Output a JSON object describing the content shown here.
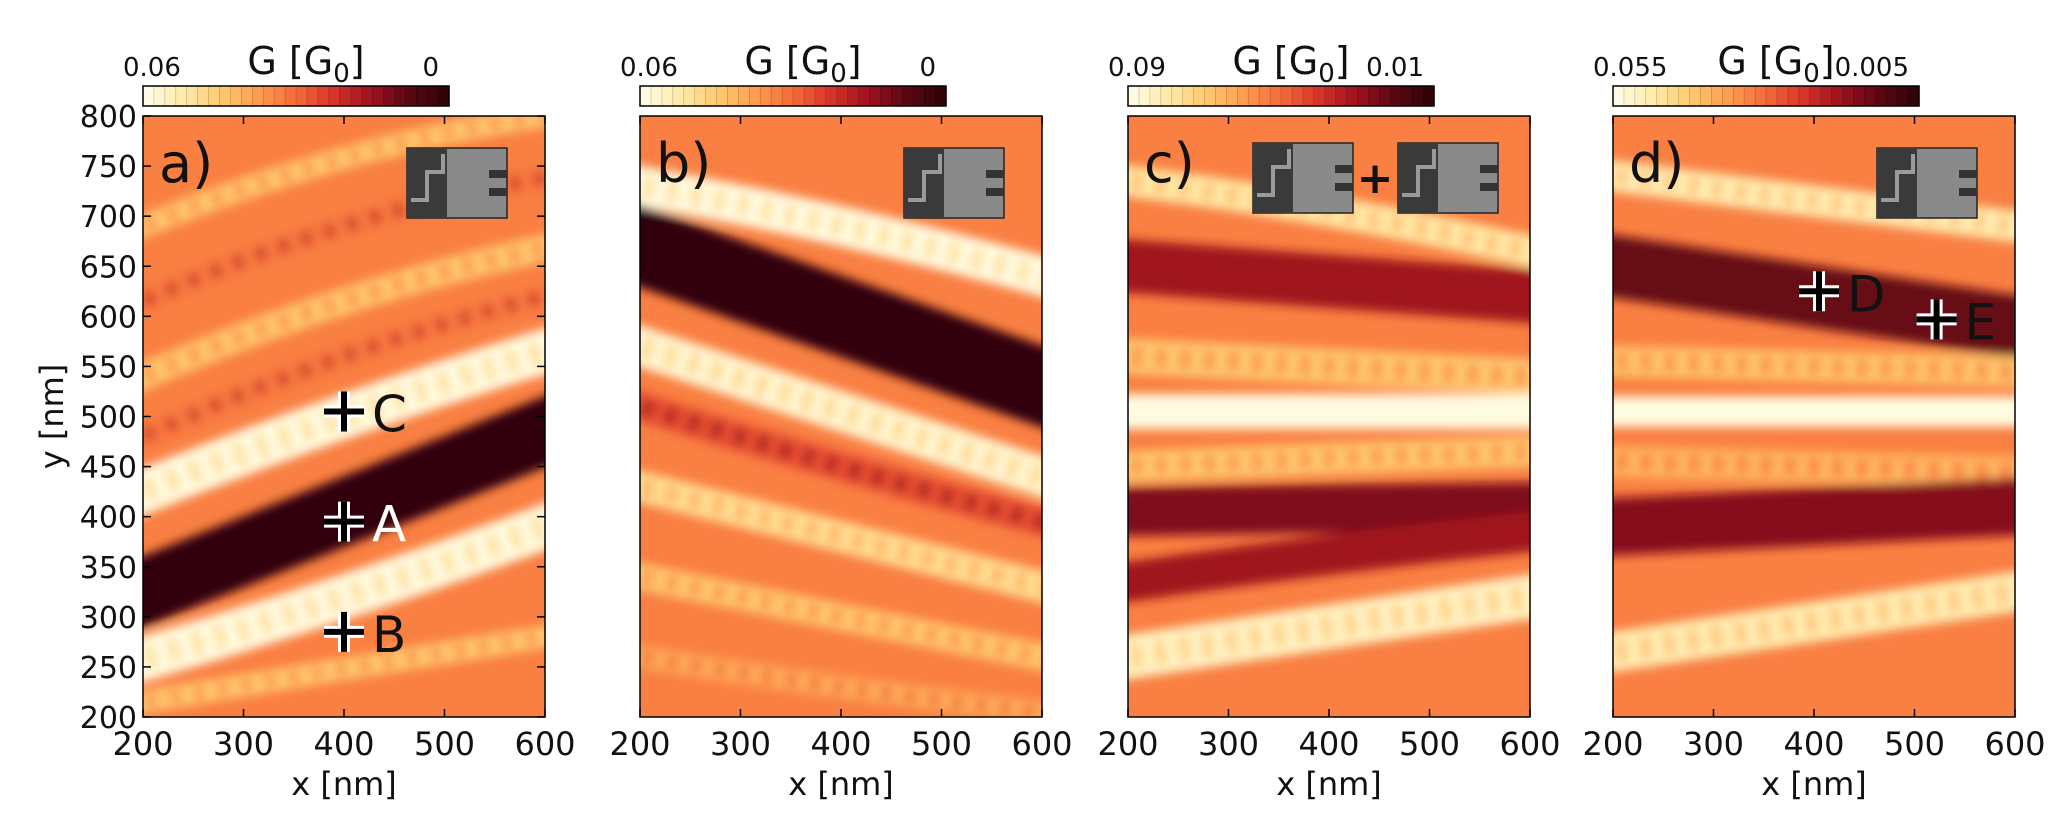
{
  "figure": {
    "colormap": [
      "#fffbe0",
      "#ffe9a6",
      "#ffc86e",
      "#ff9c4e",
      "#f56b3a",
      "#d8342a",
      "#a0121f",
      "#5e0814",
      "#320408"
    ],
    "panel_frame_color": "#000000",
    "marker_color": "#000000"
  },
  "chart_data": [
    {
      "type": "heatmap",
      "panel_label": "a)",
      "colorbar": {
        "label": "G [G",
        "label_sub": "0",
        "label_end": "]",
        "min_label": "0.06",
        "max_label": "0",
        "range": [
          0.06,
          0
        ]
      },
      "xlabel": "x [nm]",
      "xlim": [
        200,
        600
      ],
      "xticks": [
        "200",
        "300",
        "400",
        "500",
        "600"
      ],
      "ylabel": "y [nm]",
      "ylim": [
        200,
        800
      ],
      "yticks": [
        "200",
        "250",
        "300",
        "350",
        "400",
        "450",
        "500",
        "550",
        "600",
        "650",
        "700",
        "750",
        "800"
      ],
      "show_yaxis": true,
      "inset_icons": 1,
      "markers": [
        {
          "label": "C",
          "x": 400,
          "y": 505
        },
        {
          "label": "A",
          "x": 400,
          "y": 395,
          "white": true
        },
        {
          "label": "B",
          "x": 400,
          "y": 285
        }
      ],
      "bands": [
        {
          "x": [
            200,
            400,
            600
          ],
          "y": [
            215,
            248,
            280
          ],
          "value": 0.045,
          "width": 10,
          "ripple": true
        },
        {
          "x": [
            200,
            400,
            600
          ],
          "y": [
            258,
            320,
            390
          ],
          "value": 0.06,
          "width": 20,
          "ripple": true
        },
        {
          "x": [
            200,
            400,
            600
          ],
          "y": [
            325,
            405,
            485
          ],
          "value": 0.0,
          "width": 30,
          "ripple": true
        },
        {
          "x": [
            200,
            400,
            600
          ],
          "y": [
            425,
            500,
            565
          ],
          "value": 0.06,
          "width": 20,
          "ripple": true
        },
        {
          "x": [
            200,
            400,
            600
          ],
          "y": [
            480,
            560,
            620
          ],
          "value": 0.032,
          "width": 11,
          "ripple": true
        },
        {
          "x": [
            200,
            400,
            600
          ],
          "y": [
            540,
            615,
            668
          ],
          "value": 0.045,
          "width": 12,
          "ripple": true
        },
        {
          "x": [
            200,
            400,
            600
          ],
          "y": [
            615,
            690,
            738
          ],
          "value": 0.032,
          "width": 11,
          "ripple": true
        },
        {
          "x": [
            200,
            400,
            600
          ],
          "y": [
            690,
            758,
            800
          ],
          "value": 0.045,
          "width": 10,
          "ripple": true
        }
      ]
    },
    {
      "type": "heatmap",
      "panel_label": "b)",
      "colorbar": {
        "label": "G [G",
        "label_sub": "0",
        "label_end": "]",
        "min_label": "0.06",
        "max_label": "0",
        "range": [
          0.06,
          0
        ]
      },
      "xlabel": "x [nm]",
      "xlim": [
        200,
        600
      ],
      "xticks": [
        "200",
        "300",
        "400",
        "500",
        "600"
      ],
      "ylim": [
        200,
        800
      ],
      "show_yaxis": false,
      "inset_icons": 1,
      "markers": [],
      "bands": [
        {
          "x": [
            200,
            400,
            600
          ],
          "y": [
            730,
            690,
            640
          ],
          "value": 0.06,
          "width": 18,
          "ripple": true
        },
        {
          "x": [
            200,
            400,
            600
          ],
          "y": [
            670,
            600,
            530
          ],
          "value": 0.0,
          "width": 35,
          "ripple": true
        },
        {
          "x": [
            200,
            400,
            600
          ],
          "y": [
            570,
            505,
            440
          ],
          "value": 0.058,
          "width": 18,
          "ripple": true
        },
        {
          "x": [
            200,
            400,
            600
          ],
          "y": [
            510,
            450,
            395
          ],
          "value": 0.026,
          "width": 13,
          "ripple": true
        },
        {
          "x": [
            200,
            400,
            600
          ],
          "y": [
            430,
            380,
            330
          ],
          "value": 0.05,
          "width": 14,
          "ripple": true
        },
        {
          "x": [
            200,
            400,
            600
          ],
          "y": [
            340,
            300,
            260
          ],
          "value": 0.045,
          "width": 12,
          "ripple": true
        },
        {
          "x": [
            200,
            400,
            600
          ],
          "y": [
            260,
            230,
            205
          ],
          "value": 0.04,
          "width": 10,
          "ripple": true
        }
      ]
    },
    {
      "type": "heatmap",
      "panel_label": "c)",
      "colorbar": {
        "label": "G [G",
        "label_sub": "0",
        "label_end": "]",
        "min_label": "0.09",
        "max_label": "0.01",
        "range": [
          0.09,
          0.01
        ]
      },
      "xlabel": "x [nm]",
      "xlim": [
        200,
        600
      ],
      "xticks": [
        "200",
        "300",
        "400",
        "500",
        "600"
      ],
      "ylim": [
        200,
        800
      ],
      "show_yaxis": false,
      "inset_icons": 2,
      "plus_between_icons": "+",
      "markers": [],
      "bands": [
        {
          "x": [
            200,
            400,
            600
          ],
          "y": [
            735,
            705,
            665
          ],
          "value": 0.08,
          "width": 14,
          "ripple": true
        },
        {
          "x": [
            200,
            400,
            600
          ],
          "y": [
            650,
            635,
            620
          ],
          "value": 0.03,
          "width": 24,
          "ripple": false
        },
        {
          "x": [
            200,
            400,
            600
          ],
          "y": [
            560,
            550,
            540
          ],
          "value": 0.07,
          "width": 16,
          "ripple": true
        },
        {
          "x": [
            200,
            400,
            600
          ],
          "y": [
            505,
            505,
            505
          ],
          "value": 0.09,
          "width": 16,
          "ripple": false
        },
        {
          "x": [
            200,
            400,
            600
          ],
          "y": [
            450,
            458,
            465
          ],
          "value": 0.07,
          "width": 14,
          "ripple": true
        },
        {
          "x": [
            200,
            400,
            600
          ],
          "y": [
            405,
            408,
            410
          ],
          "value": 0.025,
          "width": 22,
          "ripple": false
        },
        {
          "x": [
            200,
            400,
            600
          ],
          "y": [
            260,
            290,
            320
          ],
          "value": 0.085,
          "width": 20,
          "ripple": true
        },
        {
          "x": [
            200,
            400,
            600
          ],
          "y": [
            335,
            362,
            385
          ],
          "value": 0.03,
          "width": 18,
          "ripple": false
        }
      ]
    },
    {
      "type": "heatmap",
      "panel_label": "d)",
      "colorbar": {
        "label": "G [G",
        "label_sub": "0",
        "label_end": "]",
        "min_label": "0.055",
        "max_label": "0.005",
        "range": [
          0.055,
          0.005
        ]
      },
      "xlabel": "x [nm]",
      "xlim": [
        200,
        600
      ],
      "xticks": [
        "200",
        "300",
        "400",
        "500",
        "600"
      ],
      "ylim": [
        200,
        800
      ],
      "show_yaxis": false,
      "inset_icons": 1,
      "markers": [
        {
          "label": "D",
          "x": 405,
          "y": 625
        },
        {
          "label": "E",
          "x": 522,
          "y": 597
        }
      ],
      "bands": [
        {
          "x": [
            200,
            400,
            600
          ],
          "y": [
            740,
            715,
            690
          ],
          "value": 0.05,
          "width": 14,
          "ripple": true
        },
        {
          "x": [
            200,
            400,
            600
          ],
          "y": [
            650,
            620,
            590
          ],
          "value": 0.012,
          "width": 28,
          "ripple": false
        },
        {
          "x": [
            200,
            400,
            600
          ],
          "y": [
            555,
            550,
            545
          ],
          "value": 0.042,
          "width": 14,
          "ripple": true
        },
        {
          "x": [
            200,
            400,
            600
          ],
          "y": [
            505,
            505,
            505
          ],
          "value": 0.055,
          "width": 14,
          "ripple": false
        },
        {
          "x": [
            200,
            400,
            600
          ],
          "y": [
            455,
            450,
            445
          ],
          "value": 0.04,
          "width": 14,
          "ripple": true
        },
        {
          "x": [
            200,
            400,
            600
          ],
          "y": [
            390,
            400,
            410
          ],
          "value": 0.015,
          "width": 26,
          "ripple": false
        },
        {
          "x": [
            200,
            400,
            600
          ],
          "y": [
            265,
            295,
            325
          ],
          "value": 0.05,
          "width": 18,
          "ripple": true
        }
      ]
    }
  ]
}
